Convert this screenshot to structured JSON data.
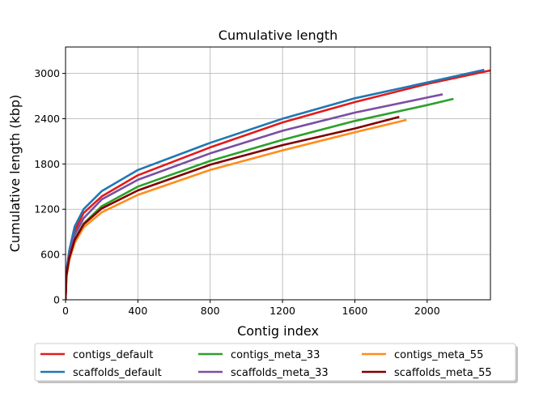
{
  "chart_data": {
    "type": "line",
    "title": "Cumulative length",
    "xlabel": "Contig index",
    "ylabel": "Cumulative length (kbp)",
    "xlim": [
      0,
      2350
    ],
    "ylim": [
      0,
      3350
    ],
    "xticks": [
      0,
      400,
      800,
      1200,
      1600,
      2000
    ],
    "yticks": [
      0,
      600,
      1200,
      1800,
      2400,
      3000
    ],
    "grid": true,
    "legend_position": "bottom",
    "legend_columns": 3,
    "series": [
      {
        "name": "contigs_default",
        "color": "#e41a1c",
        "x": [
          0,
          5,
          20,
          50,
          100,
          200,
          400,
          800,
          1200,
          1600,
          2000,
          2350
        ],
        "y": [
          0,
          350,
          600,
          910,
          1150,
          1370,
          1650,
          2020,
          2350,
          2620,
          2860,
          3040
        ]
      },
      {
        "name": "scaffolds_default",
        "color": "#1f78b4",
        "x": [
          0,
          5,
          20,
          50,
          100,
          200,
          400,
          800,
          1200,
          1600,
          2000,
          2310
        ],
        "y": [
          0,
          380,
          650,
          970,
          1200,
          1440,
          1720,
          2080,
          2400,
          2670,
          2880,
          3045
        ]
      },
      {
        "name": "contigs_meta_33",
        "color": "#2ca02c",
        "x": [
          0,
          5,
          20,
          50,
          100,
          200,
          400,
          800,
          1200,
          1600,
          2000,
          2140
        ],
        "y": [
          0,
          330,
          560,
          800,
          1010,
          1240,
          1500,
          1840,
          2120,
          2370,
          2580,
          2660
        ]
      },
      {
        "name": "scaffolds_meta_33",
        "color": "#7b4ea3",
        "x": [
          0,
          5,
          20,
          50,
          100,
          200,
          400,
          800,
          1200,
          1600,
          2000,
          2080
        ],
        "y": [
          0,
          345,
          590,
          860,
          1080,
          1330,
          1590,
          1940,
          2240,
          2480,
          2680,
          2720
        ]
      },
      {
        "name": "contigs_meta_55",
        "color": "#ff8c1a",
        "x": [
          0,
          5,
          20,
          50,
          100,
          200,
          400,
          800,
          1200,
          1600,
          1880
        ],
        "y": [
          0,
          300,
          520,
          750,
          960,
          1160,
          1390,
          1720,
          1980,
          2220,
          2380
        ]
      },
      {
        "name": "scaffolds_meta_55",
        "color": "#800000",
        "x": [
          0,
          5,
          20,
          50,
          100,
          200,
          400,
          800,
          1200,
          1600,
          1840
        ],
        "y": [
          0,
          320,
          550,
          790,
          1000,
          1210,
          1450,
          1790,
          2050,
          2270,
          2420
        ]
      }
    ]
  }
}
